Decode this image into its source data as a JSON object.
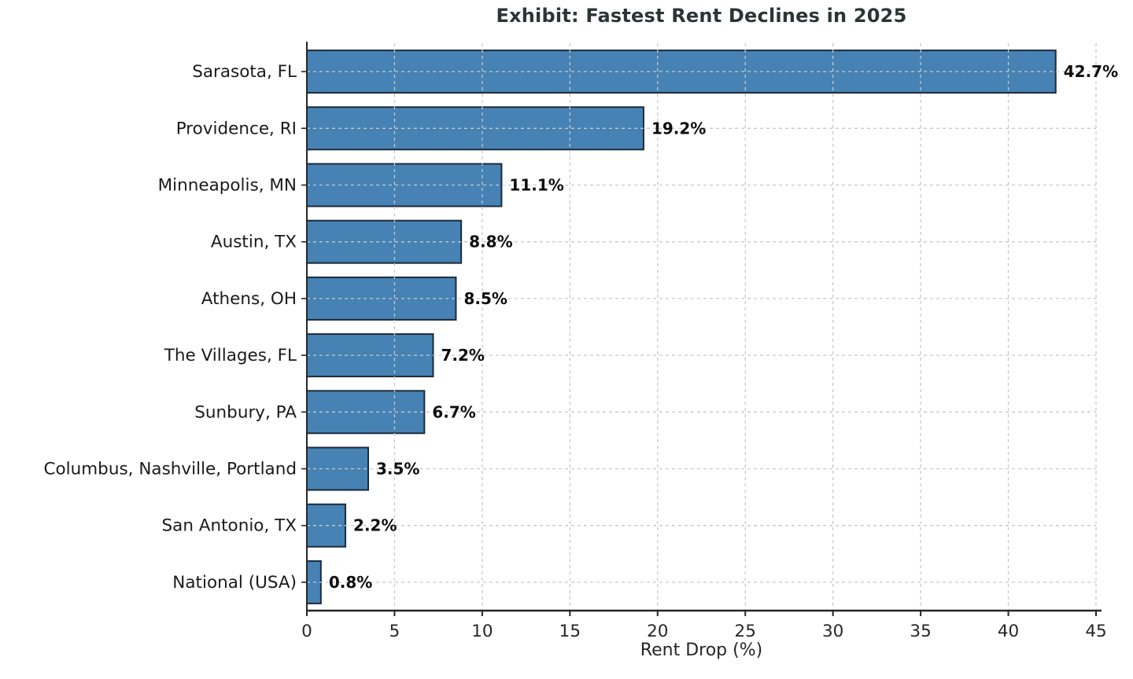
{
  "chart_data": {
    "type": "bar",
    "orientation": "horizontal",
    "title": "Exhibit: Fastest Rent Declines in 2025",
    "xlabel": "Rent Drop (%)",
    "ylabel": "",
    "categories": [
      "Sarasota, FL",
      "Providence, RI",
      "Minneapolis, MN",
      "Austin, TX",
      "Athens, OH",
      "The Villages, FL",
      "Sunbury, PA",
      "Columbus, Nashville, Portland",
      "San Antonio, TX",
      "National (USA)"
    ],
    "values": [
      42.7,
      19.2,
      11.1,
      8.8,
      8.5,
      7.2,
      6.7,
      3.5,
      2.2,
      0.8
    ],
    "value_labels": [
      "42.7%",
      "19.2%",
      "11.1%",
      "8.8%",
      "8.5%",
      "7.2%",
      "6.7%",
      "3.5%",
      "2.2%",
      "0.8%"
    ],
    "xlim": [
      0,
      45
    ],
    "xticks": [
      0,
      5,
      10,
      15,
      20,
      25,
      30,
      35,
      40,
      45
    ],
    "xtick_labels": [
      "0",
      "5",
      "10",
      "15",
      "20",
      "25",
      "30",
      "35",
      "40",
      "45"
    ],
    "grid": "dashed",
    "legend": "none",
    "colors": {
      "bar_fill": "#4682b4",
      "bar_edge": "#1c2b3a",
      "grid": "#c9c9c9",
      "axis": "#262626",
      "title": "#2d3436",
      "category_label": "#1a1a1a",
      "value_label": "#0d0d0d",
      "tick_label": "#262626",
      "background": "#ffffff"
    }
  }
}
